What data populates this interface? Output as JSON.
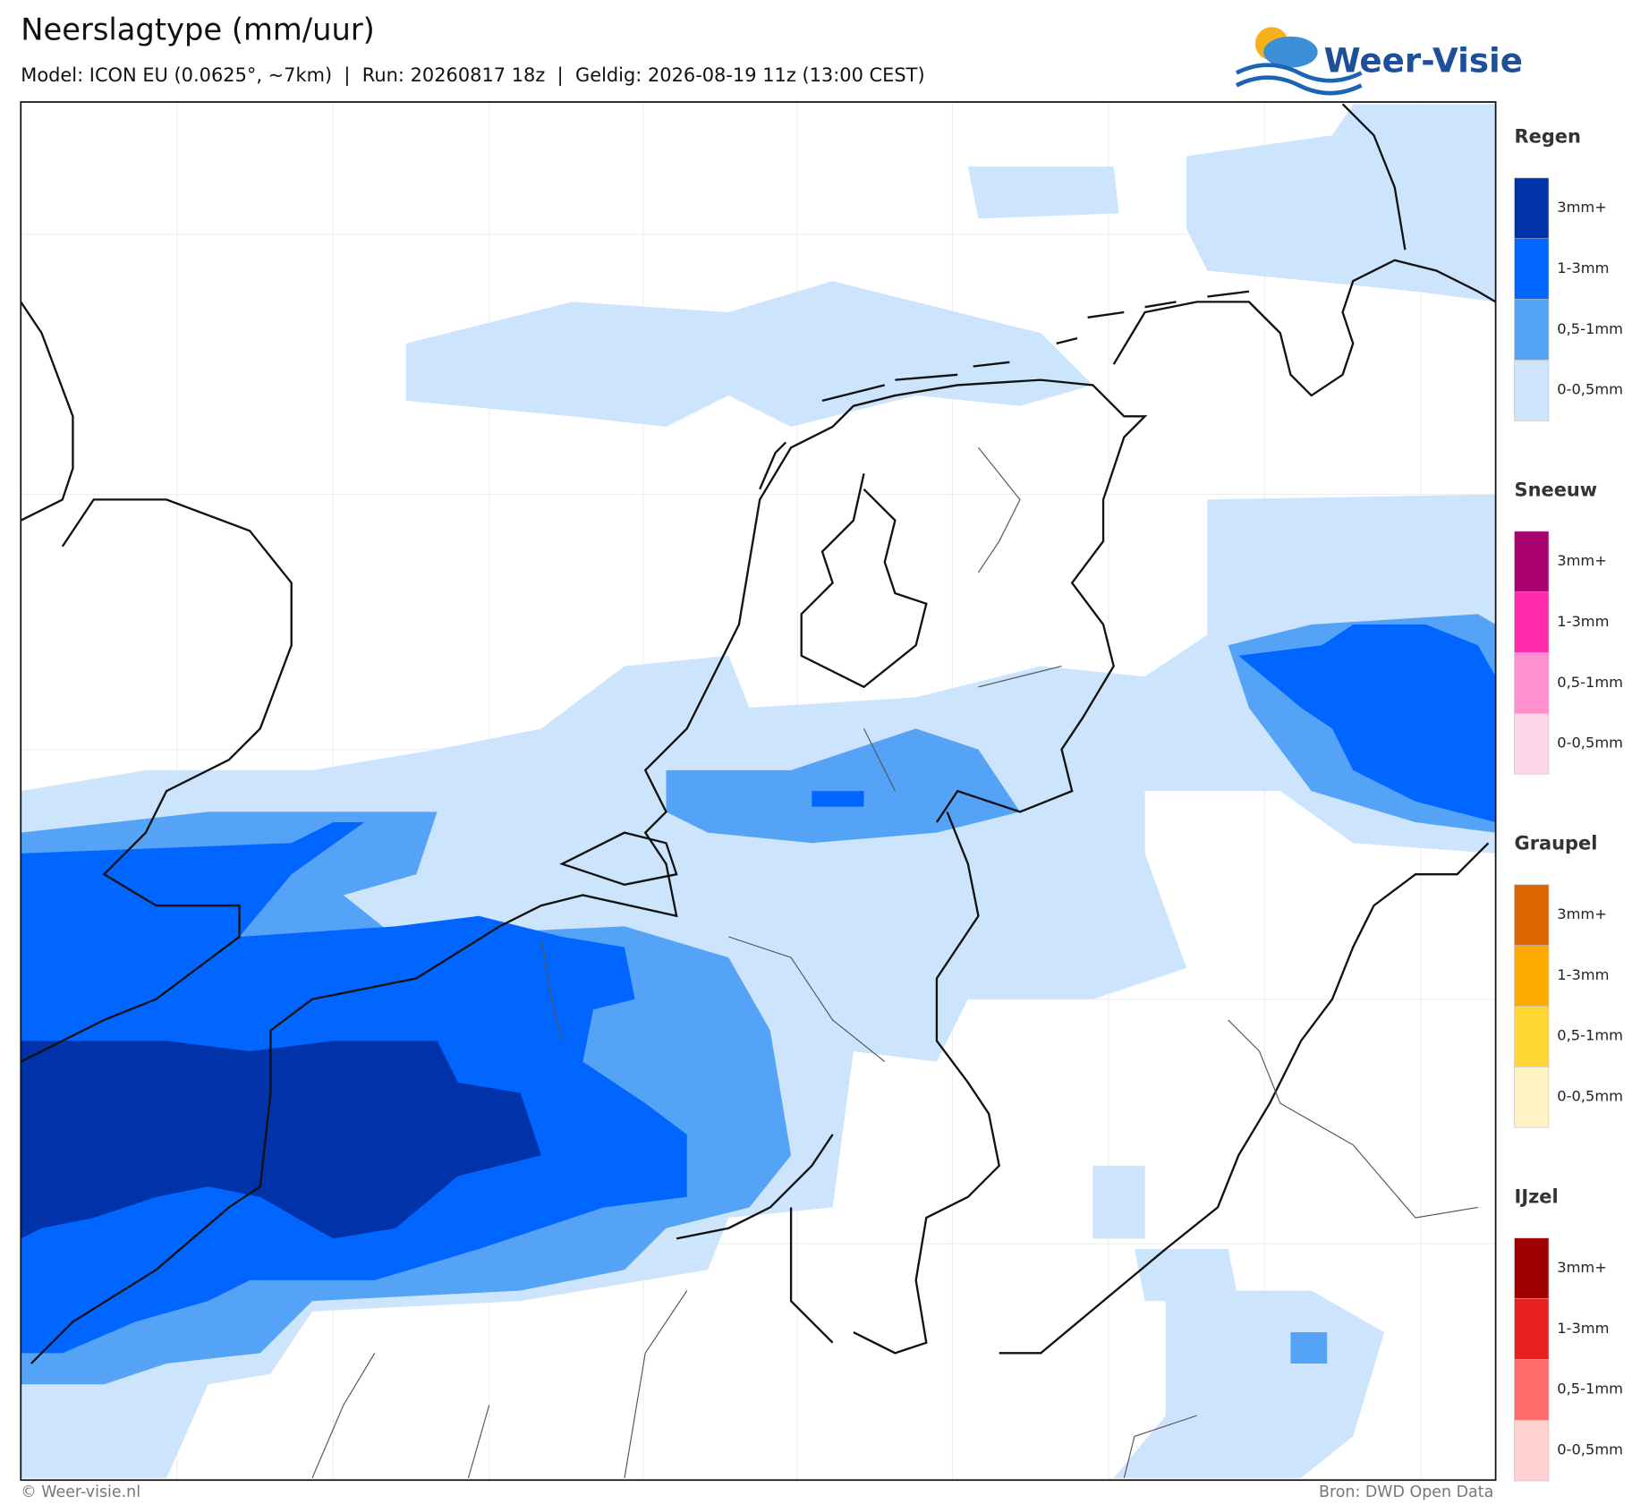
{
  "header": {
    "title": "Neerslagtype (mm/uur)",
    "subtitle": "Model: ICON EU (0.0625°, ~7km)  |  Run: 20260817 18z  |  Geldig: 2026-08-19 11z (13:00 CEST)"
  },
  "logo": {
    "text": "Weer-Visie"
  },
  "legend": {
    "groups": [
      {
        "title": "Regen",
        "labels": [
          "3mm+",
          "1-3mm",
          "0,5-1mm",
          "0-0,5mm"
        ],
        "colors": [
          "#0033aa",
          "#0066ff",
          "#55a3f7",
          "#cce4fc"
        ]
      },
      {
        "title": "Sneeuw",
        "labels": [
          "3mm+",
          "1-3mm",
          "0,5-1mm",
          "0-0,5mm"
        ],
        "colors": [
          "#a8006e",
          "#ff2aaa",
          "#ff8fcf",
          "#ffd5ea"
        ]
      },
      {
        "title": "Graupel",
        "labels": [
          "3mm+",
          "1-3mm",
          "0,5-1mm",
          "0-0,5mm"
        ],
        "colors": [
          "#dd6400",
          "#ffaa00",
          "#ffd633",
          "#fff3c4"
        ]
      },
      {
        "title": "IJzel",
        "labels": [
          "3mm+",
          "1-3mm",
          "0,5-1mm",
          "0-0,5mm"
        ],
        "colors": [
          "#a00000",
          "#e82020",
          "#ff6b6b",
          "#ffd0d0"
        ]
      }
    ]
  },
  "footer": {
    "left": "© Weer-visie.nl",
    "right": "Bron: DWD Open Data"
  }
}
